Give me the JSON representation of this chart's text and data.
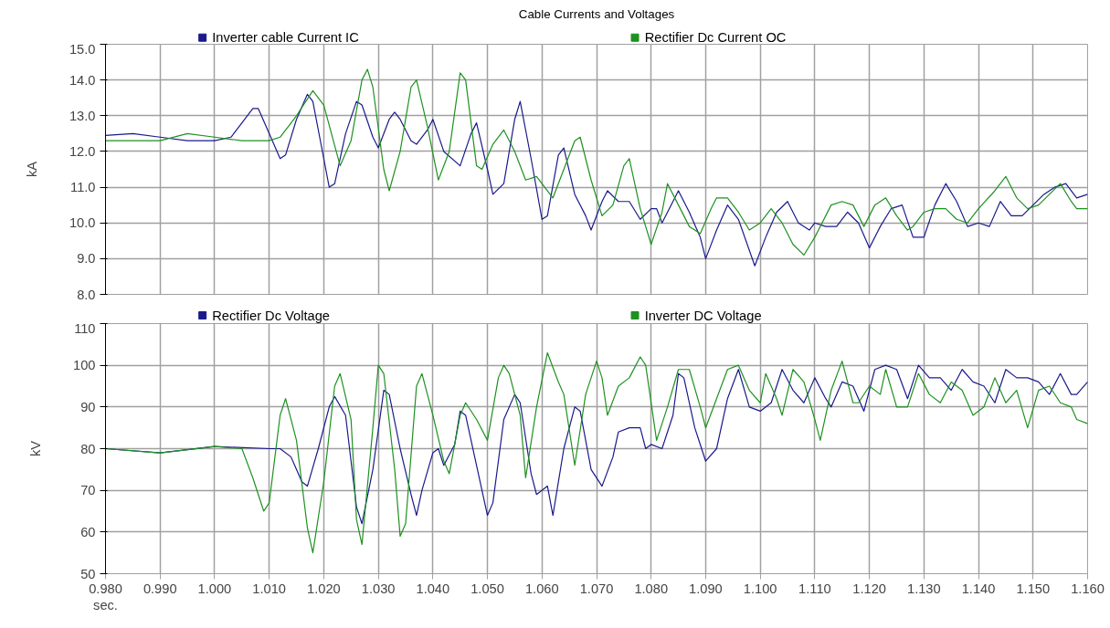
{
  "chart_data": [
    {
      "type": "line",
      "title": "Cable Currents and Voltages",
      "ylabel": "kA",
      "xlim": [
        0.98,
        1.16
      ],
      "xticks": [
        0.98,
        0.99,
        1.0,
        1.01,
        1.02,
        1.03,
        1.04,
        1.05,
        1.06,
        1.07,
        1.08,
        1.09,
        1.1,
        1.11,
        1.12,
        1.13,
        1.14,
        1.15,
        1.16
      ],
      "ylim": [
        8,
        15
      ],
      "yticks": [
        {
          "value": 8,
          "label": "8.0"
        },
        {
          "value": 9,
          "label": "9.0"
        },
        {
          "value": 10,
          "label": "10.0"
        },
        {
          "value": 11,
          "label": "11.0"
        },
        {
          "value": 12,
          "label": "12.0"
        },
        {
          "value": 13,
          "label": "13.0"
        },
        {
          "value": 14,
          "label": "14.0"
        },
        {
          "value": 15,
          "label": "15.0"
        }
      ],
      "grid": true,
      "legend": "top",
      "tick_labels": "y",
      "series": [
        {
          "name": "Inverter cable Current IC",
          "color": "#1a1a8c",
          "x": [
            0.98,
            0.985,
            0.99,
            0.995,
            1.0,
            1.003,
            1.005,
            1.007,
            1.008,
            1.01,
            1.012,
            1.013,
            1.015,
            1.017,
            1.018,
            1.02,
            1.021,
            1.022,
            1.024,
            1.026,
            1.027,
            1.029,
            1.03,
            1.032,
            1.033,
            1.034,
            1.036,
            1.037,
            1.039,
            1.04,
            1.042,
            1.045,
            1.047,
            1.048,
            1.05,
            1.051,
            1.053,
            1.055,
            1.056,
            1.058,
            1.06,
            1.061,
            1.063,
            1.064,
            1.066,
            1.068,
            1.069,
            1.071,
            1.072,
            1.074,
            1.076,
            1.078,
            1.08,
            1.081,
            1.082,
            1.084,
            1.085,
            1.087,
            1.089,
            1.09,
            1.092,
            1.094,
            1.096,
            1.099,
            1.101,
            1.103,
            1.105,
            1.107,
            1.109,
            1.11,
            1.112,
            1.114,
            1.116,
            1.118,
            1.12,
            1.122,
            1.124,
            1.126,
            1.128,
            1.13,
            1.132,
            1.134,
            1.136,
            1.138,
            1.14,
            1.142,
            1.144,
            1.146,
            1.148,
            1.15,
            1.152,
            1.154,
            1.156,
            1.158,
            1.16
          ],
          "values": [
            12.45,
            12.5,
            12.4,
            12.3,
            12.3,
            12.4,
            12.8,
            13.2,
            13.2,
            12.5,
            11.8,
            11.9,
            12.9,
            13.6,
            13.4,
            11.8,
            11.0,
            11.1,
            12.5,
            13.4,
            13.3,
            12.4,
            12.1,
            12.9,
            13.1,
            12.9,
            12.3,
            12.2,
            12.6,
            12.9,
            12.0,
            11.6,
            12.5,
            12.8,
            11.5,
            10.8,
            11.1,
            12.9,
            13.4,
            11.8,
            10.1,
            10.2,
            11.9,
            12.1,
            10.8,
            10.2,
            9.8,
            10.6,
            10.9,
            10.6,
            10.6,
            10.1,
            10.4,
            10.4,
            10.0,
            10.6,
            10.9,
            10.3,
            9.6,
            9.0,
            9.8,
            10.5,
            10.1,
            8.8,
            9.6,
            10.3,
            10.6,
            10.0,
            9.8,
            10.0,
            9.9,
            9.9,
            10.3,
            10.0,
            9.3,
            9.9,
            10.4,
            10.5,
            9.6,
            9.6,
            10.5,
            11.1,
            10.6,
            9.9,
            10.0,
            9.9,
            10.6,
            10.2,
            10.2,
            10.5,
            10.8,
            11.0,
            11.1,
            10.7,
            10.8
          ]
        },
        {
          "name": "Rectifier Dc Current OC",
          "color": "#1e9120",
          "x": [
            0.98,
            0.99,
            0.995,
            1.0,
            1.005,
            1.01,
            1.012,
            1.015,
            1.018,
            1.02,
            1.023,
            1.025,
            1.027,
            1.028,
            1.029,
            1.031,
            1.032,
            1.034,
            1.036,
            1.037,
            1.039,
            1.041,
            1.043,
            1.045,
            1.046,
            1.048,
            1.049,
            1.051,
            1.053,
            1.055,
            1.057,
            1.059,
            1.062,
            1.064,
            1.066,
            1.067,
            1.069,
            1.071,
            1.073,
            1.075,
            1.076,
            1.078,
            1.08,
            1.082,
            1.083,
            1.085,
            1.087,
            1.089,
            1.091,
            1.092,
            1.094,
            1.096,
            1.098,
            1.1,
            1.102,
            1.104,
            1.106,
            1.108,
            1.11,
            1.113,
            1.115,
            1.117,
            1.119,
            1.121,
            1.123,
            1.125,
            1.127,
            1.128,
            1.13,
            1.132,
            1.134,
            1.136,
            1.138,
            1.14,
            1.143,
            1.145,
            1.147,
            1.149,
            1.151,
            1.153,
            1.155,
            1.157,
            1.158,
            1.16
          ],
          "values": [
            12.3,
            12.3,
            12.5,
            12.4,
            12.3,
            12.3,
            12.4,
            13.0,
            13.7,
            13.3,
            11.6,
            12.3,
            14.0,
            14.3,
            13.8,
            11.5,
            10.9,
            12.0,
            13.8,
            14.0,
            12.7,
            11.2,
            12.0,
            14.2,
            14.0,
            11.6,
            11.5,
            12.2,
            12.6,
            12.0,
            11.2,
            11.3,
            10.7,
            11.5,
            12.3,
            12.4,
            11.2,
            10.2,
            10.5,
            11.6,
            11.8,
            10.4,
            9.4,
            10.3,
            11.1,
            10.5,
            9.9,
            9.7,
            10.4,
            10.7,
            10.7,
            10.3,
            9.8,
            10.0,
            10.4,
            10.0,
            9.4,
            9.1,
            9.6,
            10.5,
            10.6,
            10.5,
            9.9,
            10.5,
            10.7,
            10.2,
            9.8,
            9.9,
            10.3,
            10.4,
            10.4,
            10.1,
            10.0,
            10.4,
            10.9,
            11.3,
            10.7,
            10.4,
            10.5,
            10.8,
            11.1,
            10.6,
            10.4,
            10.4
          ]
        }
      ]
    },
    {
      "type": "line",
      "ylabel": "kV",
      "xlabel": "sec.",
      "xlim": [
        0.98,
        1.16
      ],
      "xticks": [
        {
          "value": 0.98,
          "label": "0.980"
        },
        {
          "value": 0.99,
          "label": "0.990"
        },
        {
          "value": 1.0,
          "label": "1.000"
        },
        {
          "value": 1.01,
          "label": "1.010"
        },
        {
          "value": 1.02,
          "label": "1.020"
        },
        {
          "value": 1.03,
          "label": "1.030"
        },
        {
          "value": 1.04,
          "label": "1.040"
        },
        {
          "value": 1.05,
          "label": "1.050"
        },
        {
          "value": 1.06,
          "label": "1.060"
        },
        {
          "value": 1.07,
          "label": "1.070"
        },
        {
          "value": 1.08,
          "label": "1.080"
        },
        {
          "value": 1.09,
          "label": "1.090"
        },
        {
          "value": 1.1,
          "label": "1.100"
        },
        {
          "value": 1.11,
          "label": "1.110"
        },
        {
          "value": 1.12,
          "label": "1.120"
        },
        {
          "value": 1.13,
          "label": "1.130"
        },
        {
          "value": 1.14,
          "label": "1.140"
        },
        {
          "value": 1.15,
          "label": "1.150"
        },
        {
          "value": 1.16,
          "label": "1.160"
        }
      ],
      "ylim": [
        50,
        110
      ],
      "yticks": [
        50,
        60,
        70,
        80,
        90,
        100,
        110
      ],
      "grid": true,
      "legend": "top",
      "series": [
        {
          "name": "Rectifier Dc Voltage",
          "color": "#1a1a8c",
          "x": [
            0.98,
            0.99,
            1.0,
            1.01,
            1.012,
            1.014,
            1.016,
            1.017,
            1.019,
            1.021,
            1.022,
            1.024,
            1.026,
            1.027,
            1.029,
            1.031,
            1.032,
            1.034,
            1.036,
            1.037,
            1.038,
            1.04,
            1.041,
            1.042,
            1.044,
            1.045,
            1.046,
            1.048,
            1.05,
            1.051,
            1.053,
            1.055,
            1.056,
            1.058,
            1.059,
            1.061,
            1.062,
            1.064,
            1.066,
            1.067,
            1.069,
            1.071,
            1.073,
            1.074,
            1.076,
            1.078,
            1.079,
            1.08,
            1.082,
            1.084,
            1.085,
            1.086,
            1.088,
            1.09,
            1.092,
            1.094,
            1.096,
            1.098,
            1.1,
            1.102,
            1.104,
            1.106,
            1.108,
            1.11,
            1.112,
            1.113,
            1.115,
            1.117,
            1.119,
            1.121,
            1.123,
            1.125,
            1.127,
            1.129,
            1.131,
            1.133,
            1.135,
            1.137,
            1.139,
            1.141,
            1.143,
            1.145,
            1.147,
            1.149,
            1.151,
            1.153,
            1.155,
            1.157,
            1.158,
            1.16
          ],
          "values": [
            80,
            79,
            80.5,
            80,
            80,
            78,
            72,
            71,
            80,
            90,
            92.5,
            88,
            66,
            62,
            75,
            94,
            93,
            80,
            69,
            64,
            70,
            79,
            80,
            76,
            81,
            89,
            88,
            76,
            64,
            67,
            87,
            93,
            91,
            74,
            69,
            71,
            64,
            80,
            90,
            89,
            75,
            71,
            78,
            84,
            85,
            85,
            80,
            81,
            80,
            88,
            98,
            97,
            85,
            77,
            80,
            92,
            99,
            90,
            89,
            91,
            99,
            94,
            91,
            97,
            92,
            90,
            96,
            95,
            89,
            99,
            100,
            99,
            92,
            100,
            97,
            97,
            94,
            99,
            96,
            95,
            91,
            99,
            97,
            97,
            96,
            93,
            98,
            93,
            93,
            96
          ]
        },
        {
          "name": "Inverter DC Voltage",
          "color": "#1e9120",
          "x": [
            0.98,
            0.99,
            1.0,
            1.005,
            1.007,
            1.009,
            1.01,
            1.012,
            1.013,
            1.015,
            1.017,
            1.018,
            1.02,
            1.022,
            1.023,
            1.025,
            1.026,
            1.027,
            1.029,
            1.03,
            1.031,
            1.033,
            1.034,
            1.035,
            1.037,
            1.038,
            1.04,
            1.042,
            1.043,
            1.045,
            1.046,
            1.048,
            1.05,
            1.052,
            1.053,
            1.054,
            1.056,
            1.057,
            1.059,
            1.061,
            1.063,
            1.064,
            1.066,
            1.068,
            1.07,
            1.071,
            1.072,
            1.074,
            1.076,
            1.078,
            1.079,
            1.081,
            1.083,
            1.085,
            1.087,
            1.089,
            1.09,
            1.092,
            1.094,
            1.096,
            1.098,
            1.1,
            1.101,
            1.103,
            1.104,
            1.106,
            1.108,
            1.11,
            1.111,
            1.113,
            1.115,
            1.117,
            1.118,
            1.12,
            1.122,
            1.123,
            1.125,
            1.127,
            1.129,
            1.131,
            1.133,
            1.135,
            1.137,
            1.139,
            1.141,
            1.143,
            1.145,
            1.147,
            1.149,
            1.151,
            1.153,
            1.155,
            1.157,
            1.158,
            1.16
          ],
          "values": [
            80,
            79,
            80.5,
            80,
            73,
            65,
            67,
            88,
            92,
            82,
            61,
            55,
            72,
            95,
            98,
            87,
            63,
            57,
            85,
            100,
            98,
            75,
            59,
            62,
            95,
            98,
            88,
            77,
            74,
            88,
            91,
            87,
            82,
            97,
            100,
            98,
            88,
            73,
            90,
            103,
            96,
            93,
            76,
            93,
            101,
            97,
            88,
            95,
            97,
            102,
            100,
            82,
            90,
            99,
            99,
            90,
            85,
            92,
            99,
            100,
            94,
            91,
            98,
            92,
            88,
            99,
            96,
            87,
            82,
            94,
            101,
            91,
            91,
            95,
            93,
            99,
            90,
            90,
            98,
            93,
            91,
            96,
            94,
            88,
            90,
            97,
            91,
            94,
            85,
            94,
            95,
            91,
            90,
            87,
            86
          ]
        }
      ]
    }
  ]
}
